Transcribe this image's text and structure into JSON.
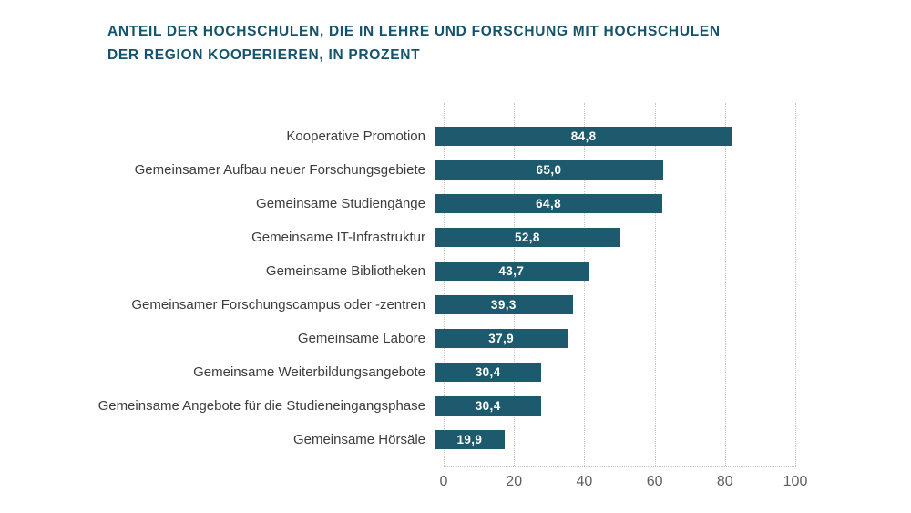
{
  "page": {
    "background": "#ffffff"
  },
  "title": {
    "line1": "ANTEIL DER HOCHSCHULEN, DIE IN LEHRE UND FORSCHUNG MIT HOCHSCHULEN",
    "line2": "DER REGION KOOPERIEREN, IN PROZENT",
    "color": "#14536e"
  },
  "chart_data": {
    "type": "bar",
    "orientation": "horizontal",
    "title": "Anteil der Hochschulen, die in Lehre und Forschung mit Hochschulen der Region kooperieren, in Prozent",
    "categories": [
      "Kooperative Promotion",
      "Gemeinsamer Aufbau neuer Forschungsgebiete",
      "Gemeinsame Studiengänge",
      "Gemeinsame IT-Infrastruktur",
      "Gemeinsame Bibliotheken",
      "Gemeinsamer Forschungscampus oder -zentren",
      "Gemeinsame Labore",
      "Gemeinsame Weiterbildungsangebote",
      "Gemeinsame Angebote für die Studieneingangsphase",
      "Gemeinsame Hörsäle"
    ],
    "values": [
      84.8,
      65.0,
      64.8,
      52.8,
      43.7,
      39.3,
      37.9,
      30.4,
      30.4,
      19.9
    ],
    "value_labels": [
      "84,8",
      "65,0",
      "64,8",
      "52,8",
      "43,7",
      "39,3",
      "37,9",
      "30,4",
      "30,4",
      "19,9"
    ],
    "xlabel": "",
    "ylabel": "",
    "xlim": [
      0,
      100
    ],
    "x_ticks": [
      "0",
      "20",
      "40",
      "60",
      "80",
      "100"
    ],
    "grid": "vertical-dotted",
    "legend": "none",
    "bar_color": "#1e5a6d",
    "value_label_color": "#ffffff",
    "category_label_color": "#3d3d3d",
    "tick_label_color": "#5e5e5e",
    "gridline_color": "#c6c6c6"
  }
}
